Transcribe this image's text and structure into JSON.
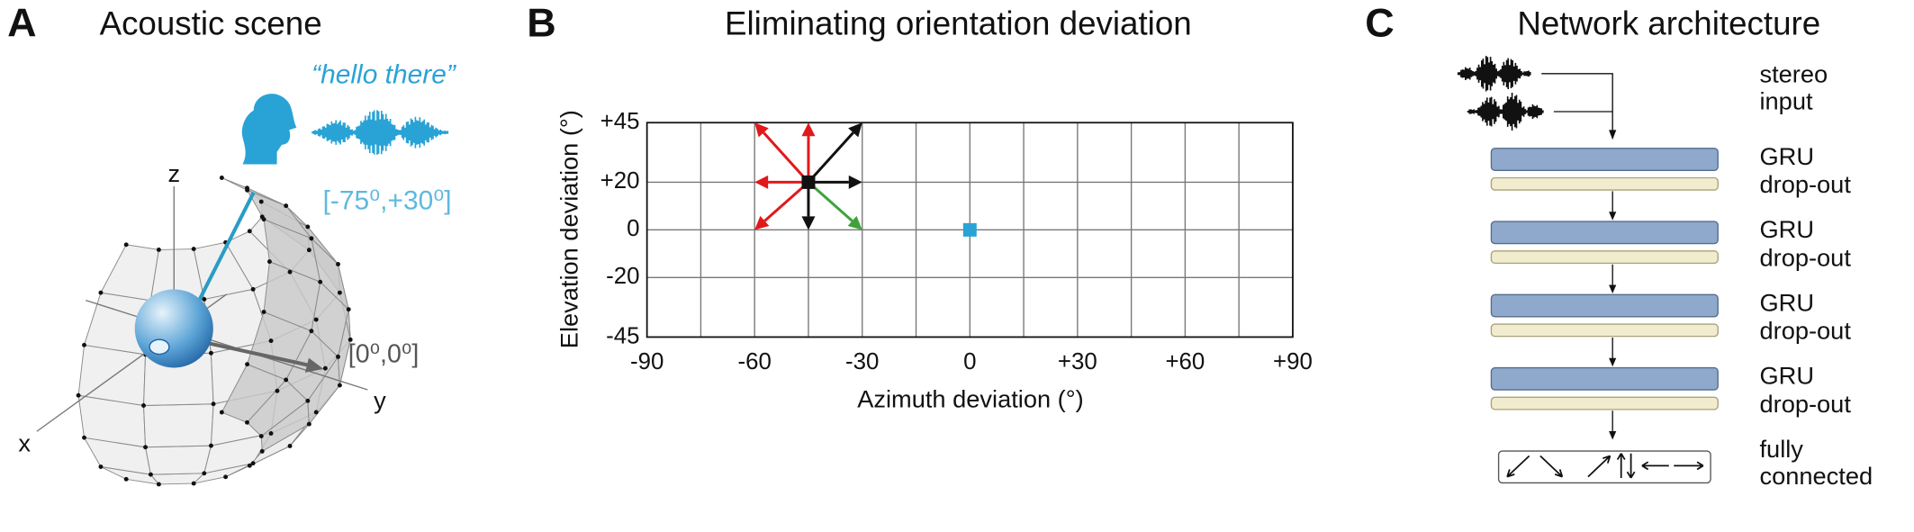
{
  "panel_a": {
    "letter": "A",
    "title": "Acoustic scene",
    "utterance": "“hello there”",
    "source_direction": "[-75⁰,+30⁰]",
    "front_direction": "[0⁰,0⁰]",
    "axes": {
      "x": "x",
      "y": "y",
      "z": "z"
    }
  },
  "chart_data": {
    "type": "arrows",
    "letter": "B",
    "title": "Eliminating orientation deviation",
    "x_label": "Azimuth deviation (°)",
    "y_label": "Elevation deviation (°)",
    "xlim": [
      -90,
      90
    ],
    "ylim": [
      -45,
      45
    ],
    "xticks": [
      -90,
      -60,
      -30,
      0,
      {
        "value": 30,
        "label": "+30"
      },
      {
        "value": 60,
        "label": "+60"
      },
      {
        "value": 90,
        "label": "+90"
      }
    ],
    "xminor": [
      -75,
      -45,
      -15,
      15,
      45,
      75
    ],
    "yticks": [
      {
        "value": 45,
        "label": "+45"
      },
      {
        "value": 20,
        "label": "+20"
      },
      0,
      -20,
      -45
    ],
    "grid": true,
    "points": {
      "x": [
        -45,
        0
      ],
      "y": [
        20,
        0
      ],
      "colors": [
        "#111111",
        "#29a3d6"
      ]
    },
    "arrows": {
      "x0": -45,
      "y0": 20,
      "x": [
        -45,
        -60,
        -60,
        -60,
        -45,
        -30,
        -30,
        -30
      ],
      "y": [
        45,
        45,
        20,
        0,
        0,
        0,
        20,
        45
      ],
      "colors": [
        "#e0191b",
        "#e0191b",
        "#e0191b",
        "#e0191b",
        "#111111",
        "#3ea33a",
        "#111111",
        "#111111"
      ]
    }
  },
  "panel_c": {
    "letter": "C",
    "title": "Network architecture",
    "input": [
      "stereo",
      "input"
    ],
    "layers": [
      {
        "cell": "GRU",
        "regularizer": "drop-out"
      },
      {
        "cell": "GRU",
        "regularizer": "drop-out"
      },
      {
        "cell": "GRU",
        "regularizer": "drop-out"
      },
      {
        "cell": "GRU",
        "regularizer": "drop-out"
      }
    ],
    "output": [
      "fully",
      "connected"
    ]
  }
}
